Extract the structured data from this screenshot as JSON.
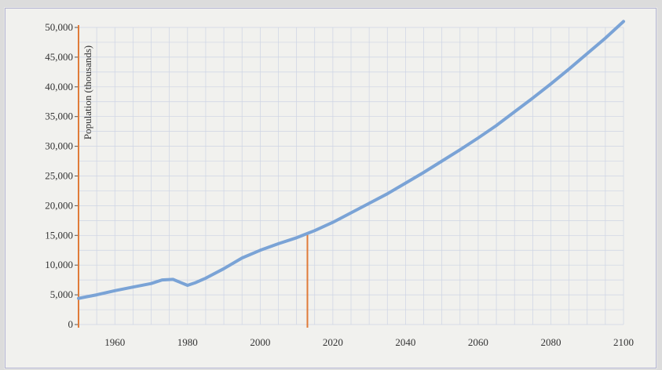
{
  "chart_data": {
    "type": "line",
    "title": "",
    "xlabel": "",
    "ylabel": "Population (thousands)",
    "xlim": [
      1950,
      2100
    ],
    "ylim": [
      0,
      50000
    ],
    "grid": true,
    "x_ticks": [
      {
        "value": 1960,
        "label": "1960"
      },
      {
        "value": 1980,
        "label": "1980"
      },
      {
        "value": 2000,
        "label": "2000"
      },
      {
        "value": 2020,
        "label": "2020"
      },
      {
        "value": 2040,
        "label": "2040"
      },
      {
        "value": 2060,
        "label": "2060"
      },
      {
        "value": 2080,
        "label": "2080"
      },
      {
        "value": 2100,
        "label": "2100"
      }
    ],
    "y_ticks": [
      {
        "value": 0,
        "label": "0"
      },
      {
        "value": 5000,
        "label": "5,000"
      },
      {
        "value": 10000,
        "label": "10,000"
      },
      {
        "value": 15000,
        "label": "15,000"
      },
      {
        "value": 20000,
        "label": "20,000"
      },
      {
        "value": 25000,
        "label": "25,000"
      },
      {
        "value": 30000,
        "label": "30,000"
      },
      {
        "value": 35000,
        "label": "35,000"
      },
      {
        "value": 40000,
        "label": "40,000"
      },
      {
        "value": 45000,
        "label": "45,000"
      },
      {
        "value": 50000,
        "label": "50,000"
      }
    ],
    "marker_line": {
      "x": 2013,
      "y": 15200
    },
    "series": [
      {
        "color": "#7aa3d6",
        "points": [
          [
            1950,
            4400
          ],
          [
            1955,
            5000
          ],
          [
            1960,
            5700
          ],
          [
            1965,
            6300
          ],
          [
            1970,
            6900
          ],
          [
            1973,
            7500
          ],
          [
            1976,
            7600
          ],
          [
            1978,
            7100
          ],
          [
            1980,
            6600
          ],
          [
            1982,
            7000
          ],
          [
            1985,
            7800
          ],
          [
            1990,
            9400
          ],
          [
            1995,
            11200
          ],
          [
            2000,
            12500
          ],
          [
            2005,
            13600
          ],
          [
            2010,
            14600
          ],
          [
            2015,
            15800
          ],
          [
            2020,
            17200
          ],
          [
            2025,
            18800
          ],
          [
            2030,
            20400
          ],
          [
            2035,
            22000
          ],
          [
            2040,
            23800
          ],
          [
            2045,
            25600
          ],
          [
            2050,
            27500
          ],
          [
            2055,
            29400
          ],
          [
            2060,
            31400
          ],
          [
            2065,
            33500
          ],
          [
            2070,
            35800
          ],
          [
            2075,
            38100
          ],
          [
            2080,
            40500
          ],
          [
            2085,
            43000
          ],
          [
            2090,
            45600
          ],
          [
            2095,
            48200
          ],
          [
            2100,
            51000
          ]
        ]
      }
    ],
    "colors": {
      "axis_line": "#e07b39",
      "grid": "#cdd4e4",
      "series": "#7aa3d6"
    }
  }
}
